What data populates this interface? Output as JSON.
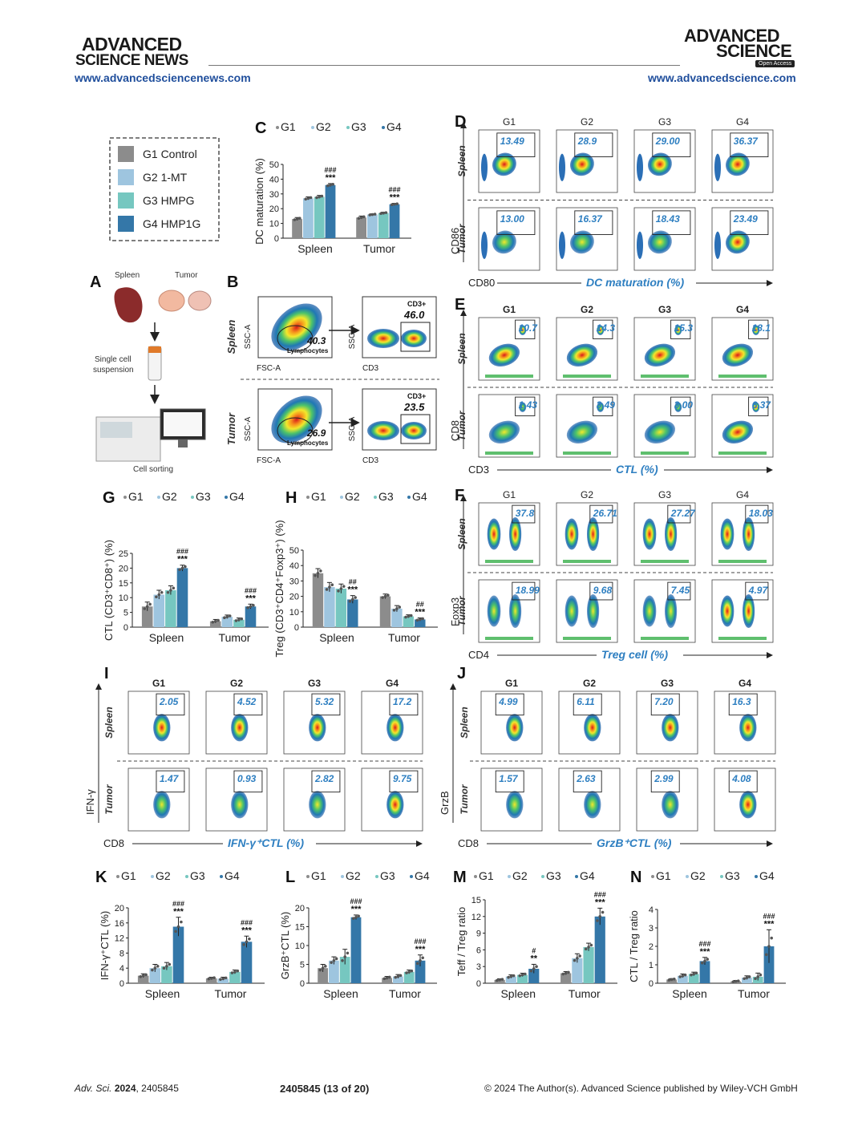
{
  "header": {
    "left_masthead_line1": "ADVANCED",
    "left_masthead_line2": "SCIENCE NEWS",
    "left_url": "www.advancedsciencenews.com",
    "right_masthead_line1": "ADVANCED",
    "right_masthead_line2": "SCIENCE",
    "right_badge": "Open Access",
    "right_url": "www.advancedscience.com"
  },
  "footer": {
    "journal": "Adv. Sci.",
    "year": "2024",
    "article": ", 2405845",
    "page": "2405845 (13 of 20)",
    "copyright": "© 2024 The Author(s). Advanced Science published by Wiley-VCH GmbH"
  },
  "colors": {
    "G1": "#8c8c8c",
    "G2": "#9ec5df",
    "G3": "#76c7c0",
    "G4": "#3477a8",
    "label_blue": "#2e7fc1",
    "url_blue": "#1f4e9c"
  },
  "legend_box": [
    {
      "label": "G1 Control",
      "color": "#8c8c8c"
    },
    {
      "label": "G2 1-MT",
      "color": "#9ec5df"
    },
    {
      "label": "G3 HMPG",
      "color": "#76c7c0"
    },
    {
      "label": "G4 HMP1G",
      "color": "#3477a8"
    }
  ],
  "group_labels": [
    "G1",
    "G2",
    "G3",
    "G4"
  ],
  "panelA": {
    "letter": "A",
    "spleen": "Spleen",
    "tumor": "Tumor",
    "step1_line1": "Single cell",
    "step1_line2": "suspension",
    "step2": "Cell sorting"
  },
  "panelB": {
    "letter": "B",
    "rows": [
      {
        "tissue": "Spleen",
        "gate_value": "40.3",
        "gate_label": "Lymphocytes",
        "cd3_label": "CD3+",
        "cd3_value": "46.0"
      },
      {
        "tissue": "Tumor",
        "gate_value": "26.9",
        "gate_label": "Lymphocytes",
        "cd3_label": "CD3+",
        "cd3_value": "23.5"
      }
    ],
    "x1": "FSC-A",
    "y1": "SSC-A",
    "x2": "CD3",
    "y2": "SSC-A"
  },
  "flow_panels": {
    "D": {
      "letter": "D",
      "y_axis": "CD86",
      "x_axis": "CD80",
      "caption": "DC maturation (%)",
      "spleen": [
        "13.49",
        "28.9",
        "29.00",
        "36.37"
      ],
      "tumor": [
        "13.00",
        "16.37",
        "18.43",
        "23.49"
      ]
    },
    "E": {
      "letter": "E",
      "y_axis": "CD8",
      "x_axis": "CD3",
      "caption": "CTL (%)",
      "spleen": [
        "10.7",
        "14.3",
        "15.3",
        "18.1"
      ],
      "tumor": [
        "1.43",
        "3.49",
        "3.00",
        "6.37"
      ]
    },
    "F": {
      "letter": "F",
      "y_axis": "Foxp3",
      "x_axis": "CD4",
      "caption": "Treg cell  (%)",
      "spleen": [
        "37.8",
        "26.71",
        "27.27",
        "18.03"
      ],
      "tumor": [
        "18.99",
        "9.68",
        "7.45",
        "4.97"
      ]
    },
    "I": {
      "letter": "I",
      "y_axis": "IFN-γ",
      "x_axis": "CD8",
      "caption": "IFN-γ⁺CTL (%)",
      "spleen": [
        "2.05",
        "4.52",
        "5.32",
        "17.2"
      ],
      "tumor": [
        "1.47",
        "0.93",
        "2.82",
        "9.75"
      ]
    },
    "J": {
      "letter": "J",
      "y_axis": "GrzB",
      "x_axis": "CD8",
      "caption": "GrzB⁺CTL (%)",
      "spleen": [
        "4.99",
        "6.11",
        "7.20",
        "16.3"
      ],
      "tumor": [
        "1.57",
        "2.63",
        "2.99",
        "4.08"
      ]
    }
  },
  "tissue_labels": {
    "spleen": "Spleen",
    "tumor": "Tumor"
  },
  "chart_data": [
    {
      "id": "C",
      "type": "bar",
      "letter": "C",
      "ylabel": "DC maturation (%)",
      "categories": [
        "Spleen",
        "Tumor"
      ],
      "ylim": [
        0,
        50
      ],
      "yticks": [
        0,
        10,
        20,
        30,
        40,
        50
      ],
      "series": [
        {
          "name": "G1",
          "values": [
            13,
            14
          ]
        },
        {
          "name": "G2",
          "values": [
            27,
            16
          ]
        },
        {
          "name": "G3",
          "values": [
            28,
            17
          ]
        },
        {
          "name": "G4",
          "values": [
            36,
            23
          ]
        }
      ],
      "errors": [
        [
          1,
          1
        ],
        [
          1,
          0.5
        ],
        [
          1,
          0.6
        ],
        [
          1,
          0.6
        ]
      ],
      "annot_hash": [
        "###",
        "###"
      ],
      "annot_star": [
        "***",
        "***"
      ]
    },
    {
      "id": "G",
      "type": "bar",
      "letter": "G",
      "ylabel": "CTL (CD3⁺CD8⁺) (%)",
      "categories": [
        "Spleen",
        "Tumor"
      ],
      "ylim": [
        0,
        25
      ],
      "yticks": [
        0,
        5,
        10,
        15,
        20,
        25
      ],
      "series": [
        {
          "name": "G1",
          "values": [
            7,
            2
          ]
        },
        {
          "name": "G2",
          "values": [
            11,
            3.5
          ]
        },
        {
          "name": "G3",
          "values": [
            12.5,
            2.5
          ]
        },
        {
          "name": "G4",
          "values": [
            20,
            7
          ]
        }
      ],
      "errors": [
        [
          1.5,
          0.6
        ],
        [
          1.5,
          0.6
        ],
        [
          1.5,
          0.6
        ],
        [
          1,
          0.8
        ]
      ],
      "annot_hash": [
        "###",
        "###"
      ],
      "annot_star": [
        "***",
        "***"
      ]
    },
    {
      "id": "H",
      "type": "bar",
      "letter": "H",
      "ylabel": "Treg (CD3⁺CD4⁺Foxp3⁺) (%)",
      "categories": [
        "Spleen",
        "Tumor"
      ],
      "ylim": [
        0,
        50
      ],
      "yticks": [
        0,
        10,
        20,
        30,
        40,
        50
      ],
      "series": [
        {
          "name": "G1",
          "values": [
            35,
            20
          ]
        },
        {
          "name": "G2",
          "values": [
            26,
            12
          ]
        },
        {
          "name": "G3",
          "values": [
            25,
            7
          ]
        },
        {
          "name": "G4",
          "values": [
            18,
            5
          ]
        }
      ],
      "errors": [
        [
          3,
          1.5
        ],
        [
          3,
          2
        ],
        [
          3,
          1
        ],
        [
          2.5,
          1
        ]
      ],
      "annot_hash": [
        "##",
        "##"
      ],
      "annot_star": [
        "***",
        "***"
      ]
    },
    {
      "id": "K",
      "type": "bar",
      "letter": "K",
      "ylabel": "IFN-γ⁺CTL (%)",
      "categories": [
        "Spleen",
        "Tumor"
      ],
      "ylim": [
        0,
        20
      ],
      "yticks": [
        0,
        4,
        8,
        12,
        16,
        20
      ],
      "series": [
        {
          "name": "G1",
          "values": [
            2,
            1.3
          ]
        },
        {
          "name": "G2",
          "values": [
            4,
            1.2
          ]
        },
        {
          "name": "G3",
          "values": [
            4.5,
            3
          ]
        },
        {
          "name": "G4",
          "values": [
            15,
            11
          ]
        }
      ],
      "errors": [
        [
          0.5,
          0.3
        ],
        [
          1,
          0.4
        ],
        [
          1,
          0.5
        ],
        [
          2.5,
          1.5
        ]
      ],
      "annot_hash": [
        "###",
        "###"
      ],
      "annot_star": [
        "***",
        "***"
      ]
    },
    {
      "id": "L",
      "type": "bar",
      "letter": "L",
      "ylabel": "GrzB⁺CTL (%)",
      "categories": [
        "Spleen",
        "Tumor"
      ],
      "ylim": [
        0,
        20
      ],
      "yticks": [
        0,
        5,
        10,
        15,
        20
      ],
      "series": [
        {
          "name": "G1",
          "values": [
            4,
            1.4
          ]
        },
        {
          "name": "G2",
          "values": [
            6,
            1.8
          ]
        },
        {
          "name": "G3",
          "values": [
            7,
            3
          ]
        },
        {
          "name": "G4",
          "values": [
            17.5,
            6
          ]
        }
      ],
      "errors": [
        [
          1,
          0.4
        ],
        [
          1,
          0.5
        ],
        [
          2,
          0.5
        ],
        [
          0.6,
          1.5
        ]
      ],
      "annot_hash": [
        "###",
        "###"
      ],
      "annot_star": [
        "***",
        "***"
      ]
    },
    {
      "id": "M",
      "type": "bar",
      "letter": "M",
      "ylabel": "Teff / Treg ratio",
      "categories": [
        "Spleen",
        "Tumor"
      ],
      "ylim": [
        0,
        15
      ],
      "yticks": [
        0,
        3,
        6,
        9,
        12,
        15
      ],
      "series": [
        {
          "name": "G1",
          "values": [
            0.6,
            1.8
          ]
        },
        {
          "name": "G2",
          "values": [
            1.2,
            4.5
          ]
        },
        {
          "name": "G3",
          "values": [
            1.5,
            6.5
          ]
        },
        {
          "name": "G4",
          "values": [
            2.6,
            12
          ]
        }
      ],
      "errors": [
        [
          0.2,
          0.3
        ],
        [
          0.3,
          0.8
        ],
        [
          0.3,
          0.7
        ],
        [
          0.8,
          1.5
        ]
      ],
      "annot_hash": [
        "#",
        "###"
      ],
      "annot_star": [
        "**",
        "***"
      ]
    },
    {
      "id": "N",
      "type": "bar",
      "letter": "N",
      "ylabel": "CTL / Treg ratio",
      "categories": [
        "Spleen",
        "Tumor"
      ],
      "ylim": [
        0,
        4
      ],
      "yticks": [
        0,
        1,
        2,
        3,
        4
      ],
      "series": [
        {
          "name": "G1",
          "values": [
            0.2,
            0.1
          ]
        },
        {
          "name": "G2",
          "values": [
            0.4,
            0.3
          ]
        },
        {
          "name": "G3",
          "values": [
            0.5,
            0.35
          ]
        },
        {
          "name": "G4",
          "values": [
            1.2,
            2
          ]
        }
      ],
      "errors": [
        [
          0.05,
          0.05
        ],
        [
          0.1,
          0.1
        ],
        [
          0.1,
          0.2
        ],
        [
          0.2,
          0.9
        ]
      ],
      "annot_hash": [
        "###",
        "###"
      ],
      "annot_star": [
        "***",
        "***"
      ]
    }
  ]
}
